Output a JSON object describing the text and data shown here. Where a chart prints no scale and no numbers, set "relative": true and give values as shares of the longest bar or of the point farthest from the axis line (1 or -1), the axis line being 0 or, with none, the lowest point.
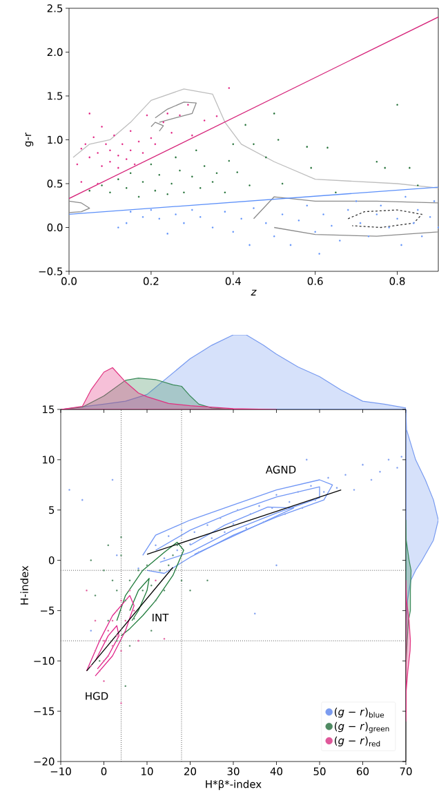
{
  "chart_data": [
    {
      "type": "scatter",
      "xlabel": "z",
      "ylabel": "g-r",
      "xlim": [
        0,
        0.9
      ],
      "ylim": [
        -0.5,
        2.5
      ],
      "xticks": [
        {
          "value": 0,
          "label": "0.0"
        },
        {
          "value": 0.2,
          "label": "0.2"
        },
        {
          "value": 0.4,
          "label": "0.4"
        },
        {
          "value": 0.6,
          "label": "0.6"
        },
        {
          "value": 0.8,
          "label": "0.8"
        }
      ],
      "yticks": [
        {
          "value": -0.5,
          "label": "−0.5"
        },
        {
          "value": 0,
          "label": "0.0"
        },
        {
          "value": 0.5,
          "label": "0.5"
        },
        {
          "value": 1,
          "label": "1.0"
        },
        {
          "value": 1.5,
          "label": "1.5"
        },
        {
          "value": 2,
          "label": "2.0"
        },
        {
          "value": 2.5,
          "label": "2.5"
        }
      ],
      "series": [
        {
          "type": "line",
          "color": "#bdbdbd",
          "x": [
            0.01,
            0.05,
            0.1,
            0.15,
            0.2,
            0.28,
            0.35,
            0.38,
            0.42,
            0.5,
            0.6,
            0.8,
            0.9
          ],
          "values": [
            0.8,
            0.95,
            1.0,
            1.2,
            1.45,
            1.58,
            1.52,
            1.2,
            0.95,
            0.75,
            0.55,
            0.5,
            0.45
          ]
        },
        {
          "type": "line",
          "color": "#8a8a8a",
          "x": [
            0.21,
            0.24,
            0.28,
            0.31,
            0.3,
            0.26,
            0.22
          ],
          "values": [
            1.25,
            1.35,
            1.43,
            1.42,
            1.3,
            1.25,
            1.2
          ]
        },
        {
          "type": "line",
          "color": "#8a8a8a",
          "x": [
            0.2,
            0.21,
            0.23,
            0.22
          ],
          "values": [
            1.15,
            1.2,
            1.16,
            1.1
          ]
        },
        {
          "type": "line",
          "color": "#8a8a8a",
          "x": [
            0.45,
            0.5,
            0.6,
            0.75,
            0.9,
            0.9,
            0.75,
            0.6,
            0.5
          ],
          "values": [
            0.1,
            0.35,
            0.3,
            0.3,
            0.28,
            -0.05,
            -0.1,
            -0.08,
            0.0
          ]
        },
        {
          "type": "line",
          "color": "#333333",
          "line_style": "dashed",
          "x": [
            0.68,
            0.72,
            0.8,
            0.86,
            0.84,
            0.76,
            0.69
          ],
          "values": [
            0.1,
            0.18,
            0.2,
            0.15,
            0.05,
            0.0,
            0.02
          ]
        },
        {
          "type": "line",
          "color": "#8a8a8a",
          "x": [
            0,
            0.03,
            0.05,
            0.03,
            0
          ],
          "values": [
            0.3,
            0.28,
            0.22,
            0.18,
            0.17
          ]
        },
        {
          "type": "scatter",
          "color": "#e0197d",
          "x": [
            0.02,
            0.03,
            0.04,
            0.05,
            0.05,
            0.06,
            0.07,
            0.08,
            0.08,
            0.09,
            0.1,
            0.1,
            0.11,
            0.12,
            0.12,
            0.13,
            0.14,
            0.15,
            0.15,
            0.16,
            0.17,
            0.18,
            0.19,
            0.2,
            0.21,
            0.23,
            0.24,
            0.25,
            0.27,
            0.29,
            0.3,
            0.33,
            0.36,
            0.39,
            0.03,
            0.07
          ],
          "values": [
            0.72,
            0.9,
            0.95,
            0.8,
            1.3,
            1.03,
            0.85,
            0.7,
            1.15,
            0.95,
            0.75,
            0.88,
            1.05,
            0.82,
            0.68,
            0.95,
            0.78,
            0.88,
            1.1,
            0.72,
            0.98,
            0.85,
            1.28,
            1.02,
            0.95,
            1.2,
            1.3,
            1.08,
            1.28,
            1.4,
            1.05,
            1.22,
            1.27,
            1.59,
            0.52,
            0.5
          ]
        },
        {
          "type": "scatter",
          "color": "#1a6b2f",
          "x": [
            0.05,
            0.08,
            0.1,
            0.12,
            0.14,
            0.15,
            0.17,
            0.18,
            0.2,
            0.21,
            0.22,
            0.24,
            0.25,
            0.26,
            0.27,
            0.28,
            0.3,
            0.31,
            0.32,
            0.33,
            0.35,
            0.36,
            0.38,
            0.39,
            0.4,
            0.41,
            0.43,
            0.44,
            0.45,
            0.48,
            0.5,
            0.51,
            0.52,
            0.58,
            0.59,
            0.63,
            0.65,
            0.75,
            0.77,
            0.8,
            0.83,
            0.85
          ],
          "values": [
            0.42,
            0.48,
            0.4,
            0.55,
            0.45,
            0.62,
            0.35,
            0.52,
            0.72,
            0.42,
            0.6,
            0.38,
            0.5,
            0.8,
            0.65,
            0.4,
            0.58,
            0.88,
            0.45,
            0.7,
            0.52,
            0.62,
            0.4,
            0.76,
            0.95,
            0.63,
            1.17,
            0.48,
            0.95,
            0.8,
            1.3,
            1.0,
            0.5,
            0.92,
            0.68,
            0.91,
            0.4,
            0.75,
            0.68,
            1.4,
            0.68,
            0.48
          ]
        },
        {
          "type": "scatter",
          "color": "#5b8ff9",
          "x": [
            0.12,
            0.14,
            0.15,
            0.18,
            0.2,
            0.22,
            0.24,
            0.26,
            0.28,
            0.3,
            0.32,
            0.35,
            0.38,
            0.4,
            0.42,
            0.44,
            0.45,
            0.48,
            0.5,
            0.52,
            0.54,
            0.56,
            0.58,
            0.6,
            0.61,
            0.62,
            0.64,
            0.66,
            0.68,
            0.7,
            0.71,
            0.73,
            0.75,
            0.76,
            0.78,
            0.8,
            0.81,
            0.82,
            0.84,
            0.85,
            0.86,
            0.88,
            0.89,
            0.9
          ],
          "values": [
            0.0,
            0.05,
            0.18,
            0.12,
            0.2,
            0.1,
            -0.07,
            0.15,
            0.05,
            0.2,
            0.12,
            0.0,
            0.18,
            -0.05,
            0.1,
            -0.2,
            0.22,
            0.05,
            -0.1,
            0.15,
            -0.2,
            0.08,
            0.25,
            -0.05,
            -0.3,
            0.15,
            0.02,
            -0.15,
            0.2,
            0.3,
            0.05,
            -0.1,
            0.15,
            0.25,
            0.0,
            0.1,
            -0.2,
            0.35,
            0.05,
            0.2,
            -0.1,
            0.12,
            0.3,
            0.0
          ]
        },
        {
          "type": "line",
          "color": "#d6247a",
          "x": [
            0,
            0.9
          ],
          "values": [
            0.33,
            2.4
          ]
        },
        {
          "type": "line",
          "color": "#5b8ff9",
          "x": [
            0,
            0.9
          ],
          "values": [
            0.15,
            0.46
          ]
        }
      ]
    },
    {
      "type": "scatter",
      "xlabel": "H*β*-index",
      "ylabel": "H-index",
      "xlim": [
        -10,
        70
      ],
      "ylim": [
        -20,
        15
      ],
      "xticks": [
        {
          "value": -10,
          "label": "−10"
        },
        0,
        10,
        20,
        30,
        40,
        50,
        60,
        70
      ],
      "yticks": [
        {
          "value": -20,
          "label": "−20"
        },
        {
          "value": -15,
          "label": "−15"
        },
        {
          "value": -10,
          "label": "−10"
        },
        {
          "value": -5,
          "label": "−5"
        },
        0,
        5,
        10,
        15
      ],
      "legend": "bottom right",
      "ref_lines": [
        {
          "axis": "x",
          "value": 4,
          "color": "#555555",
          "line_style": "dotted"
        },
        {
          "axis": "x",
          "value": 18,
          "color": "#555555",
          "line_style": "dotted"
        },
        {
          "axis": "y",
          "value": -1,
          "color": "#555555",
          "line_style": "dotted"
        },
        {
          "axis": "y",
          "value": -8,
          "color": "#555555",
          "line_style": "dotted"
        }
      ],
      "annotations": [
        "AGND",
        "INT",
        "HGD"
      ],
      "series": [
        {
          "type": "scatter",
          "name": "(*g* − *r*)$_{blue}$",
          "color": "#7b9cf0",
          "x": [
            12,
            14,
            15,
            17,
            18,
            20,
            21,
            22,
            24,
            25,
            27,
            28,
            30,
            31,
            33,
            34,
            36,
            37,
            39,
            40,
            42,
            43,
            45,
            46,
            48,
            49,
            51,
            52,
            54,
            56,
            58,
            60,
            62,
            64,
            66,
            68,
            69,
            47,
            40,
            -5,
            -8,
            2,
            -3,
            35,
            3,
            8
          ],
          "values": [
            1.5,
            0.2,
            2.4,
            1.0,
            3.0,
            1.6,
            2.8,
            0.8,
            3.5,
            2.2,
            4.2,
            2.8,
            3.6,
            5.0,
            3.2,
            4.6,
            5.4,
            3.8,
            5.2,
            6.5,
            4.6,
            5.8,
            6.8,
            5.2,
            7.4,
            6.0,
            6.8,
            8.2,
            7.2,
            8.5,
            7.0,
            9.5,
            8.0,
            8.8,
            10.0,
            9.2,
            10.3,
            10.0,
            -0.5,
            6,
            7,
            8,
            -7,
            -5.3,
            0.5,
            -0.8
          ]
        },
        {
          "type": "scatter",
          "name": "(*g* − *r*)$_{green}$",
          "color": "#4f8a62",
          "x": [
            -3,
            -2,
            0,
            1,
            2,
            3,
            4,
            5,
            6,
            7,
            8,
            9,
            10,
            11,
            12,
            13,
            14,
            15,
            16,
            17,
            18,
            20,
            24,
            3,
            5,
            6,
            1,
            -1,
            11,
            4
          ],
          "values": [
            0,
            -3.5,
            -1,
            1.5,
            -2,
            -3,
            0.5,
            -4,
            -2,
            -5.8,
            -1,
            -3,
            -0.5,
            -2.5,
            -4,
            -1,
            -3,
            -0.5,
            0.5,
            1.5,
            -2,
            -3,
            -2,
            -8,
            -12.5,
            -8.5,
            -6,
            -10,
            -7,
            2.3
          ]
        },
        {
          "type": "scatter",
          "name": "(*g* − *r*)$_{red}$",
          "color": "#e0589a",
          "x": [
            -3,
            -2,
            -1,
            0,
            0,
            1,
            1,
            2,
            2,
            3,
            3,
            4,
            4,
            5,
            6,
            7,
            0,
            4,
            8,
            12,
            -4,
            14,
            -2
          ],
          "values": [
            -10.5,
            -9,
            -11,
            -8,
            -10,
            -7,
            -9.5,
            -6,
            -8.5,
            -5,
            -7.5,
            -4,
            -9,
            -6,
            -3,
            -5,
            -12,
            -14.2,
            -8,
            -2,
            -3,
            -7.8,
            -6
          ]
        },
        {
          "type": "line",
          "color": "#6f95f5",
          "x": [
            9,
            12,
            20,
            30,
            40,
            50,
            53,
            51,
            40,
            30,
            20,
            14,
            10
          ],
          "values": [
            0.5,
            2.5,
            4,
            5.5,
            7,
            8,
            7.5,
            6,
            4.3,
            2.5,
            0.3,
            -1.3,
            -1
          ]
        },
        {
          "type": "line",
          "color": "#6f95f5",
          "x": [
            12,
            20,
            30,
            40,
            50,
            50,
            40,
            30,
            20,
            13
          ],
          "values": [
            1,
            3,
            4.8,
            6.3,
            7.3,
            6.2,
            4.7,
            3,
            0.8,
            -0.2
          ]
        },
        {
          "type": "line",
          "color": "#6f95f5",
          "x": [
            20,
            28,
            38,
            44,
            38,
            28,
            21
          ],
          "values": [
            1.5,
            3.5,
            5.3,
            5.2,
            4,
            2,
            0.6
          ]
        },
        {
          "type": "line",
          "color": "#1e7b3a",
          "x": [
            3,
            5,
            9,
            14,
            17,
            18.5,
            16,
            12,
            9,
            6,
            4
          ],
          "values": [
            -6,
            -3.5,
            -1,
            0.8,
            1.8,
            1,
            -1.5,
            -4,
            -5.5,
            -6.8,
            -7.5
          ]
        },
        {
          "type": "line",
          "color": "#1e7b3a",
          "x": [
            6,
            8,
            10.5,
            10,
            8,
            6.5
          ],
          "values": [
            -5,
            -3,
            -1.8,
            -3,
            -5,
            -6
          ]
        },
        {
          "type": "line",
          "color": "#e0248a",
          "x": [
            -4,
            -1,
            2,
            6,
            7,
            5,
            2,
            -2
          ],
          "values": [
            -11,
            -8,
            -5.5,
            -3.5,
            -4.5,
            -7,
            -9.5,
            -11.5
          ]
        },
        {
          "type": "line",
          "color": "#e0248a",
          "x": [
            -2,
            1,
            3,
            3.5,
            1,
            -1.5
          ],
          "values": [
            -10,
            -7.5,
            -6.5,
            -7.5,
            -9.5,
            -10.8
          ]
        },
        {
          "type": "line",
          "color": "#000000",
          "x": [
            -4,
            16
          ],
          "values": [
            -11,
            -0.7
          ]
        },
        {
          "type": "line",
          "color": "#000000",
          "x": [
            10,
            55
          ],
          "values": [
            0.6,
            7
          ]
        }
      ]
    },
    {
      "type": "area",
      "relative": true,
      "tick_labels": false,
      "xlim": [
        -10,
        70
      ],
      "xticks": [
        -10,
        0,
        10,
        20,
        30,
        40,
        50,
        60,
        70
      ],
      "series": [
        {
          "color": "#779af0",
          "x": [
            -10,
            0,
            5,
            10,
            15,
            20,
            25,
            30,
            33,
            37,
            40,
            45,
            50,
            55,
            60,
            65,
            70
          ],
          "values": [
            0,
            0.07,
            0.11,
            0.2,
            0.44,
            0.68,
            0.86,
            1,
            1,
            0.86,
            0.74,
            0.57,
            0.44,
            0.26,
            0.11,
            0.07,
            0.02
          ]
        },
        {
          "color": "#3a8a5a",
          "x": [
            -10,
            -5,
            0,
            5,
            8,
            12,
            16,
            18,
            20,
            22,
            25,
            30
          ],
          "values": [
            0,
            0.03,
            0.18,
            0.39,
            0.42,
            0.4,
            0.33,
            0.31,
            0.18,
            0.07,
            0.02,
            0
          ]
        },
        {
          "color": "#e0307f",
          "x": [
            -10,
            -5,
            -3,
            0,
            2,
            5,
            8,
            10,
            15,
            20,
            30,
            40
          ],
          "values": [
            0,
            0.04,
            0.26,
            0.5,
            0.56,
            0.37,
            0.22,
            0.17,
            0.08,
            0.05,
            0.01,
            0
          ]
        }
      ]
    },
    {
      "type": "area",
      "relative": true,
      "orientation": "horizontal",
      "tick_labels": false,
      "ylim": [
        -20,
        15
      ],
      "yticks": [
        -20,
        -15,
        -10,
        -5,
        0,
        5,
        10,
        15
      ],
      "series": [
        {
          "color": "#779af0",
          "x": [
            -10,
            -6,
            -4,
            -2,
            -1,
            0,
            2,
            4,
            6,
            8,
            10,
            13,
            15
          ],
          "values": [
            0,
            0.02,
            0.05,
            0.15,
            0.3,
            0.5,
            0.85,
            1,
            0.85,
            0.6,
            0.3,
            0.02,
            0
          ]
        },
        {
          "color": "#3a8a5a",
          "x": [
            -12,
            -10,
            -8,
            -6,
            -5,
            -3,
            -1,
            0,
            2,
            4
          ],
          "values": [
            0,
            0.01,
            0.04,
            0.08,
            0.14,
            0.14,
            0.16,
            0.1,
            0.01,
            0
          ]
        },
        {
          "color": "#e0307f",
          "x": [
            -16,
            -15,
            -13,
            -11,
            -9,
            -8,
            -6,
            -4,
            -2
          ],
          "values": [
            0,
            0.01,
            0.01,
            0.06,
            0.13,
            0.14,
            0.1,
            0.02,
            0
          ]
        }
      ]
    }
  ]
}
